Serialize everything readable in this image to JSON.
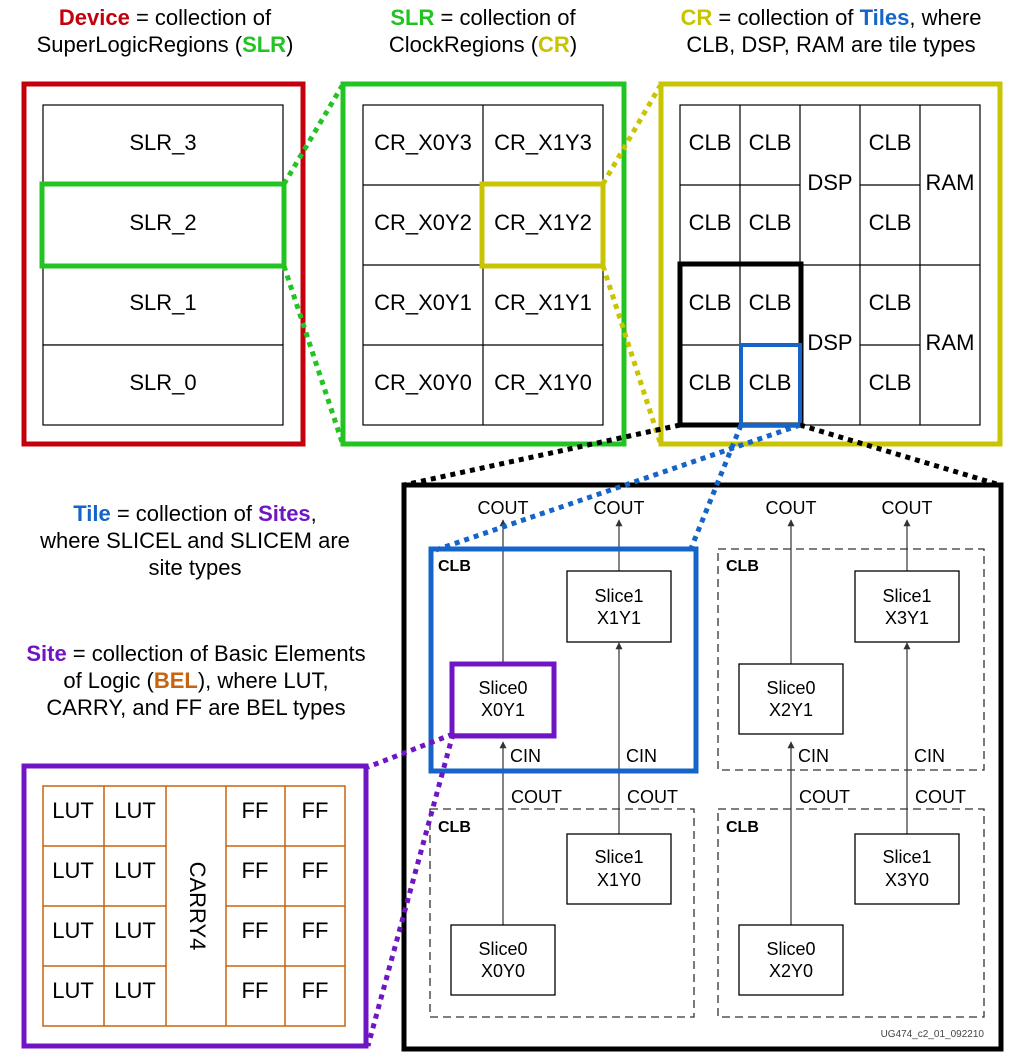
{
  "colors": {
    "device": "#c4000d",
    "slr": "#22c322",
    "cr": "#c9c400",
    "tile": "#1565c8",
    "site": "#7015c4",
    "bel": "#c8630f"
  },
  "headers": {
    "device": {
      "key": "Device",
      "t1": " = collection of",
      "t2": "SuperLogicRegions (",
      "abbr": "SLR",
      "t3": ")"
    },
    "slr": {
      "key": "SLR",
      "t1": " = collection of",
      "t2": "ClockRegions (",
      "abbr": "CR",
      "t3": ")"
    },
    "cr": {
      "key": "CR",
      "t1": " = collection of ",
      "key2": "Tiles",
      "t2": ", where",
      "t3": "CLB, DSP, RAM are tile types"
    },
    "tile": {
      "key": "Tile",
      "t1": " = collection of ",
      "key2": "Sites",
      "t2": ",",
      "t3": "where SLICEL and SLICEM are",
      "t4": "site types"
    },
    "site": {
      "key": "Site",
      "t1": " = collection of Basic Elements",
      "t2": "of Logic (",
      "abbr": "BEL",
      "t3": "), where LUT,",
      "t4": "CARRY, and FF are BEL types"
    }
  },
  "slrs": [
    "SLR_3",
    "SLR_2",
    "SLR_1",
    "SLR_0"
  ],
  "clock_regions": [
    [
      "CR_X0Y3",
      "CR_X1Y3"
    ],
    [
      "CR_X0Y2",
      "CR_X1Y2"
    ],
    [
      "CR_X0Y1",
      "CR_X1Y1"
    ],
    [
      "CR_X0Y0",
      "CR_X1Y0"
    ]
  ],
  "tile_types": {
    "clb": "CLB",
    "dsp": "DSP",
    "ram": "RAM"
  },
  "bels": {
    "lut": "LUT",
    "ff": "FF",
    "carry": "CARRY4"
  },
  "clb_diagram": {
    "block_label": "CLB",
    "cout": "COUT",
    "cin": "CIN",
    "slices": [
      {
        "name": "Slice1",
        "coord": "X1Y1"
      },
      {
        "name": "Slice0",
        "coord": "X0Y1"
      },
      {
        "name": "Slice1",
        "coord": "X3Y1"
      },
      {
        "name": "Slice0",
        "coord": "X2Y1"
      },
      {
        "name": "Slice1",
        "coord": "X1Y0"
      },
      {
        "name": "Slice0",
        "coord": "X0Y0"
      },
      {
        "name": "Slice1",
        "coord": "X3Y0"
      },
      {
        "name": "Slice0",
        "coord": "X2Y0"
      }
    ],
    "footer": "UG474_c2_01_092210"
  }
}
